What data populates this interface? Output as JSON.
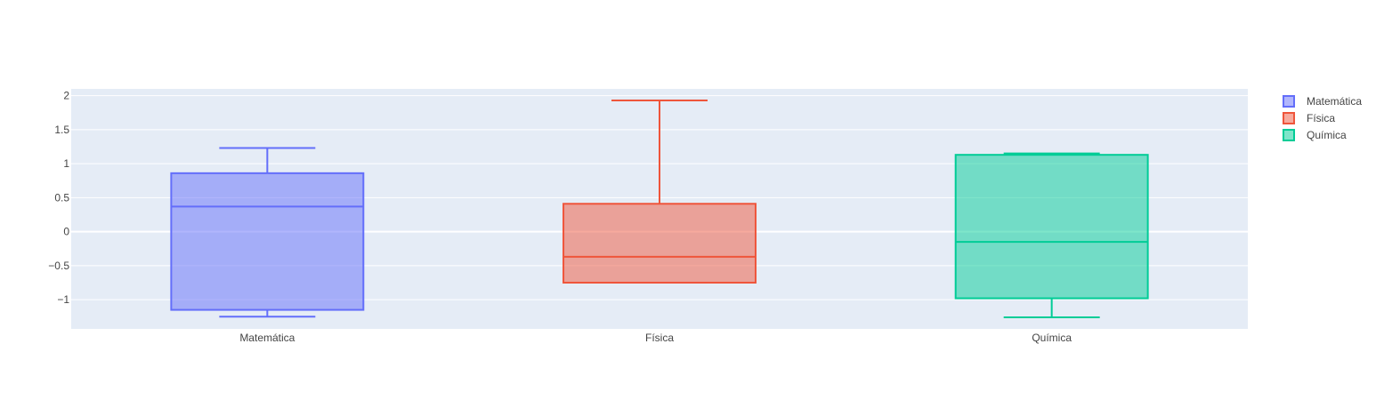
{
  "chart_data": {
    "type": "box",
    "categories": [
      "Matemática",
      "Física",
      "Química"
    ],
    "series": [
      {
        "name": "Matemática",
        "color": "#636efa",
        "min": -1.25,
        "q1": -1.15,
        "median": 0.37,
        "q3": 0.86,
        "max": 1.23
      },
      {
        "name": "Física",
        "color": "#ef553b",
        "min": -0.75,
        "q1": -0.75,
        "median": -0.37,
        "q3": 0.41,
        "max": 1.93
      },
      {
        "name": "Química",
        "color": "#00cc96",
        "min": -1.26,
        "q1": -0.98,
        "median": -0.15,
        "q3": 1.13,
        "max": 1.15
      }
    ],
    "y_ticks": [
      "2",
      "1.5",
      "1",
      "0.5",
      "0",
      "−0.5",
      "−1"
    ],
    "y_tick_values": [
      2,
      1.5,
      1,
      0.5,
      0,
      -0.5,
      -1
    ],
    "ylim": [
      -1.43,
      2.1
    ],
    "legend_position": "top-right",
    "grid": true,
    "plot_background": "#e5ecf6"
  }
}
